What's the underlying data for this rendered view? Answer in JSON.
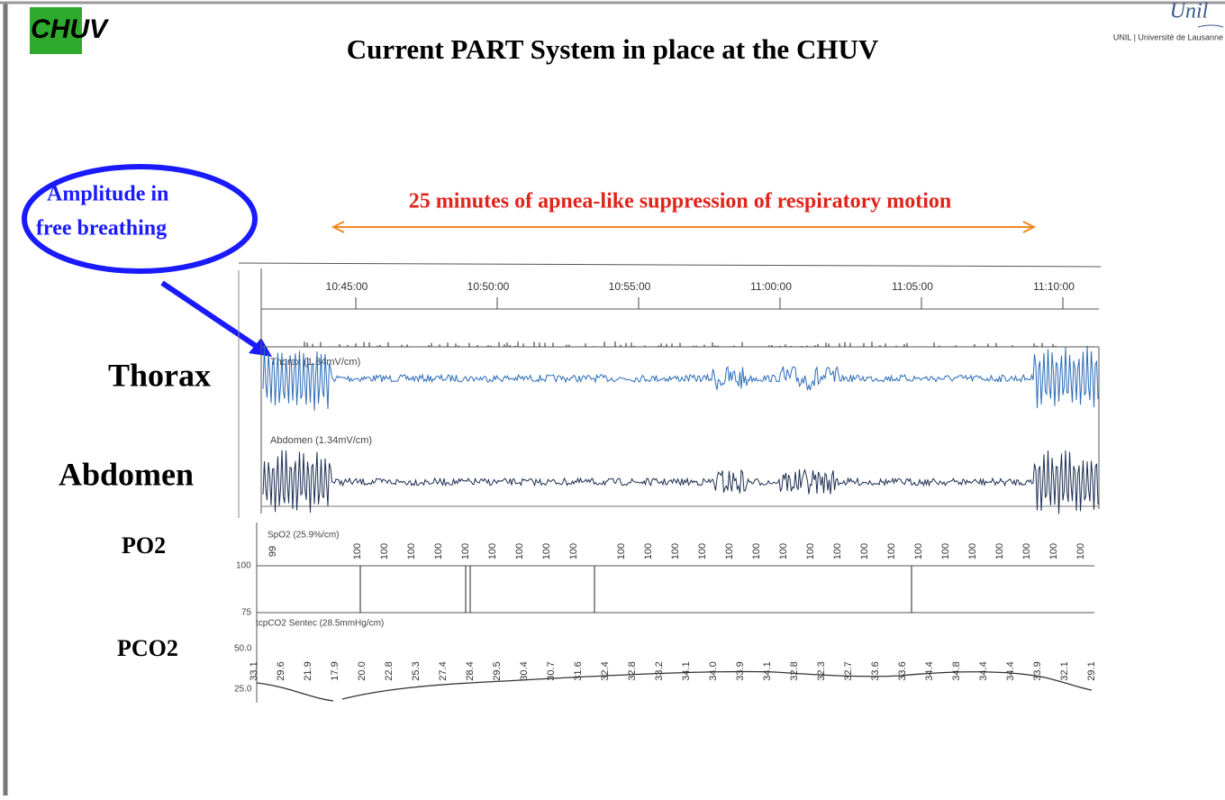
{
  "header": {
    "title": "Current PART System in place at the CHUV",
    "logo_left": "CHUV",
    "logo_right": "Unil",
    "logo_right_sub": "UNIL | Université de Lausanne"
  },
  "callout": {
    "lines": [
      "Amplitude in",
      "free breathing"
    ]
  },
  "annotation": "25 minutes of apnea-like suppression of respiratory motion",
  "row_labels": {
    "thorax": "Thorax",
    "abdomen": "Abdomen",
    "po2": "PO2",
    "pco2": "PCO2"
  },
  "recording": {
    "time_ticks": [
      "10:45:00",
      "10:50:00",
      "10:55:00",
      "11:00:00",
      "11:05:00",
      "11:10:00"
    ],
    "thorax_channel": "Thorax (1.34mV/cm)",
    "abdomen_channel": "Abdomen (1.34mV/cm)",
    "spo2_channel": "SpO2 (25.9%/cm)",
    "spo2_axis": [
      "100",
      "75"
    ],
    "spo2_values": [
      "99",
      "100",
      "100",
      "100",
      "100",
      "100",
      "100",
      "100",
      "100",
      "100",
      "100",
      "100",
      "100",
      "100",
      "100",
      "100",
      "100",
      "100",
      "100",
      "100",
      "100",
      "100",
      "100",
      "100",
      "100",
      "100",
      "100",
      "100"
    ],
    "pco2_channel": "tcpCO2 Sentec (28.5mmHg/cm)",
    "pco2_axis": [
      "50.0",
      "25.0"
    ],
    "pco2_values": [
      "33.1",
      "29.6",
      "21.9",
      "17.9",
      "20.0",
      "22.8",
      "25.3",
      "27.4",
      "28.4",
      "29.5",
      "30.4",
      "30.7",
      "31.6",
      "32.4",
      "32.8",
      "33.2",
      "34.1",
      "34.0",
      "33.9",
      "34.1",
      "32.8",
      "32.3",
      "32.7",
      "33.6",
      "33.6",
      "34.4",
      "34.8",
      "34.4",
      "34.4",
      "33.9",
      "32.1",
      "29.1"
    ]
  }
}
